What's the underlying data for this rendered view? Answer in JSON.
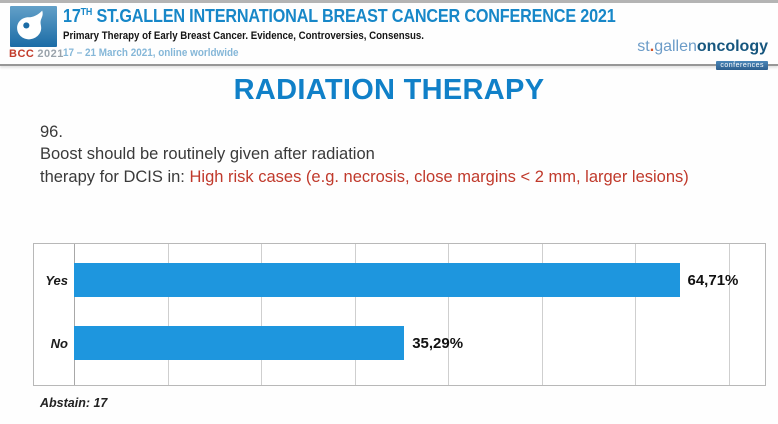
{
  "header": {
    "logo_badge": {
      "bcc": "BCC",
      "year": "2021"
    },
    "conference_title": {
      "number": "17",
      "ordinal": "TH",
      "rest": " ST.GALLEN INTERNATIONAL BREAST CANCER CONFERENCE 2021"
    },
    "subtitle": "Primary Therapy of Early Breast Cancer. Evidence, Controversies, Consensus.",
    "dates": "17 – 21 March 2021, online worldwide",
    "brand": {
      "prefix": "st",
      "dot": ".",
      "mid": "gallen",
      "bold": "oncology",
      "badge": "conferences"
    }
  },
  "main": {
    "page_title": "RADIATION THERAPY",
    "question_number": "96.",
    "question_line1": "Boost should be routinely given after radiation",
    "question_line2_black": "therapy for DCIS in: ",
    "question_highlight_red": "High risk cases (e.g. necrosis, close margins < 2 mm, larger lesions)",
    "abstain": "Abstain: 17"
  },
  "chart_data": {
    "type": "bar",
    "orientation": "horizontal",
    "title": "",
    "xlabel": "",
    "ylabel": "",
    "categories": [
      "Yes",
      "No"
    ],
    "values": [
      64.71,
      35.29
    ],
    "value_labels": [
      "64,71%",
      "35,29%"
    ],
    "xlim": [
      0,
      70
    ],
    "gridline_step": 10,
    "grid": true,
    "legend": false,
    "note": "Abstain: 17"
  },
  "colors": {
    "accent_blue": "#1080C8",
    "header_blue": "#1787C8",
    "light_blue": "#85B7D8",
    "bar_blue": "#1E96DE",
    "alert_red": "#C0392B",
    "brand_light_blue": "#6C9CC8",
    "brand_dark_blue": "#16567E",
    "bcc_red": "#C23B2A"
  }
}
